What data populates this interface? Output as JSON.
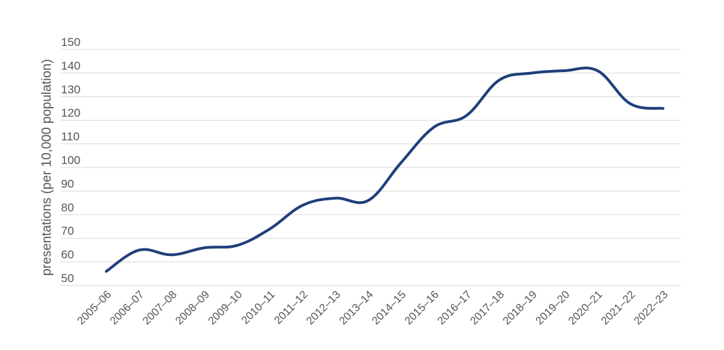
{
  "chart_data": {
    "type": "line",
    "title": "",
    "xlabel": "",
    "ylabel": "presentations (per 10,000 population)",
    "ylim": [
      50,
      150
    ],
    "yticks": [
      50,
      60,
      70,
      80,
      90,
      100,
      110,
      120,
      130,
      140,
      150
    ],
    "grid": true,
    "legend": "none",
    "categories": [
      "2005–06",
      "2006–07",
      "2007–08",
      "2008–09",
      "2009–10",
      "2010–11",
      "2011–12",
      "2012–13",
      "2013–14",
      "2014–15",
      "2015–16",
      "2016–17",
      "2017–18",
      "2018–19",
      "2019–20",
      "2020–21",
      "2021–22",
      "2022–23"
    ],
    "series": [
      {
        "color": "#1f3f7a",
        "values": [
          56,
          65,
          63,
          66,
          67,
          74,
          84,
          87,
          86,
          102,
          117,
          122,
          137,
          140,
          141,
          141,
          127,
          125
        ]
      }
    ]
  }
}
